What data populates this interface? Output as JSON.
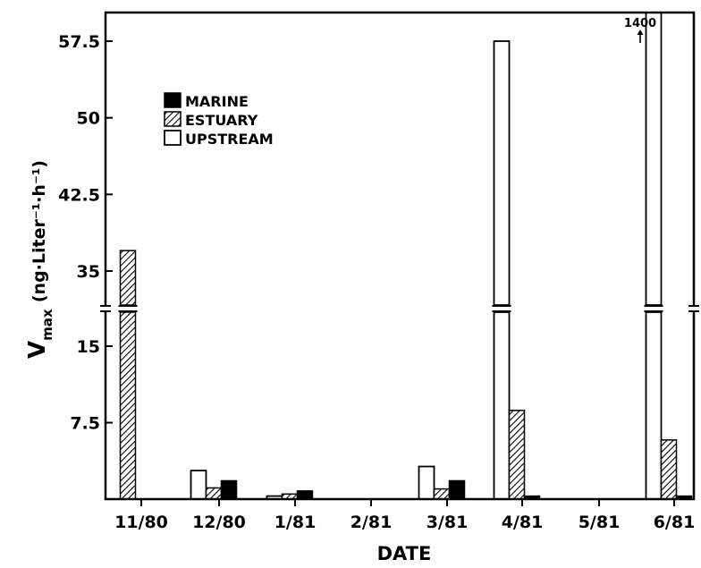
{
  "chart_data": {
    "type": "bar",
    "xlabel": "DATE",
    "ylabel_main": "V",
    "ylabel_sub": "max",
    "ylabel_units": "(ng·Liter⁻¹·h⁻¹)",
    "categories": [
      "11/80",
      "12/80",
      "1/81",
      "2/81",
      "3/81",
      "4/81",
      "5/81",
      "6/81"
    ],
    "y_ticks": [
      "7.5",
      "15",
      "35",
      "42.5",
      "50",
      "57.5"
    ],
    "axis_break": "between 15 and 35",
    "series": [
      {
        "name": "MARINE",
        "values": [
          null,
          1.8,
          0.8,
          null,
          1.8,
          0.3,
          null,
          0.3
        ]
      },
      {
        "name": "ESTUARY",
        "values": [
          37,
          1.1,
          0.5,
          null,
          1.0,
          8.7,
          null,
          5.8
        ]
      },
      {
        "name": "UPSTREAM",
        "values": [
          null,
          2.8,
          0.3,
          null,
          3.2,
          57.5,
          null,
          1400
        ]
      }
    ],
    "annotations": [
      {
        "text": "1400",
        "category": "6/81",
        "series": "UPSTREAM"
      }
    ],
    "legend_position": "top-left",
    "colors": {
      "MARINE": "#000000",
      "ESTUARY": "hatched",
      "UPSTREAM": "#ffffff"
    }
  }
}
